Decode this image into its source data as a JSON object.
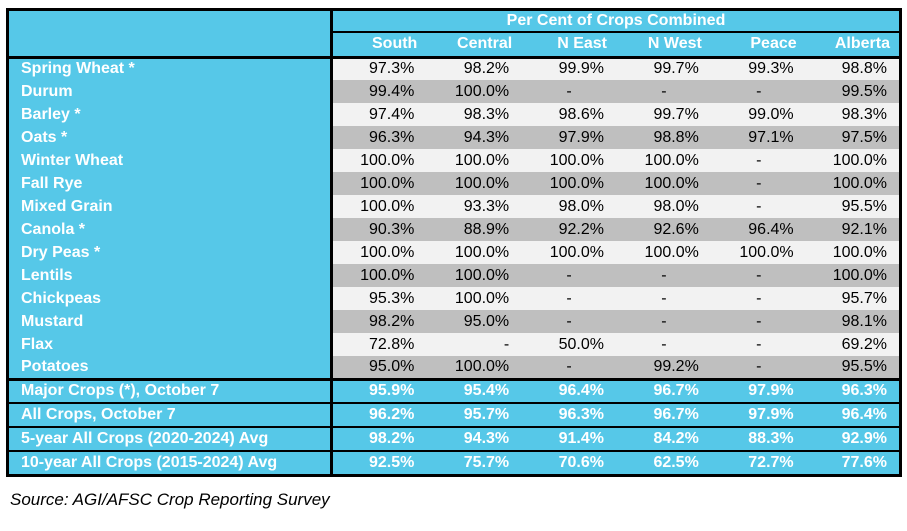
{
  "table": {
    "title": "Per Cent of Crops Combined",
    "columns": [
      "South",
      "Central",
      "N East",
      "N West",
      "Peace",
      "Alberta"
    ],
    "rows": [
      {
        "label": "Spring Wheat *",
        "values": [
          "97.3%",
          "98.2%",
          "99.9%",
          "99.7%",
          "99.3%",
          "98.8%"
        ]
      },
      {
        "label": "Durum",
        "values": [
          "99.4%",
          "100.0%",
          "-",
          "-",
          "-",
          "99.5%"
        ]
      },
      {
        "label": "Barley *",
        "values": [
          "97.4%",
          "98.3%",
          "98.6%",
          "99.7%",
          "99.0%",
          "98.3%"
        ]
      },
      {
        "label": "Oats *",
        "values": [
          "96.3%",
          "94.3%",
          "97.9%",
          "98.8%",
          "97.1%",
          "97.5%"
        ]
      },
      {
        "label": "Winter Wheat",
        "values": [
          "100.0%",
          "100.0%",
          "100.0%",
          "100.0%",
          "-",
          "100.0%"
        ]
      },
      {
        "label": "Fall Rye",
        "values": [
          "100.0%",
          "100.0%",
          "100.0%",
          "100.0%",
          "-",
          "100.0%"
        ]
      },
      {
        "label": "Mixed Grain",
        "values": [
          "100.0%",
          "93.3%",
          "98.0%",
          "98.0%",
          "-",
          "95.5%"
        ]
      },
      {
        "label": "Canola *",
        "values": [
          "90.3%",
          "88.9%",
          "92.2%",
          "92.6%",
          "96.4%",
          "92.1%"
        ]
      },
      {
        "label": "Dry Peas *",
        "values": [
          "100.0%",
          "100.0%",
          "100.0%",
          "100.0%",
          "100.0%",
          "100.0%"
        ]
      },
      {
        "label": "Lentils",
        "values": [
          "100.0%",
          "100.0%",
          "-",
          "-",
          "-",
          "100.0%"
        ]
      },
      {
        "label": "Chickpeas",
        "values": [
          "95.3%",
          "100.0%",
          "-",
          "-",
          "-",
          "95.7%"
        ]
      },
      {
        "label": "Mustard",
        "values": [
          "98.2%",
          "95.0%",
          "-",
          "-",
          "-",
          "98.1%"
        ]
      },
      {
        "label": "Flax",
        "values": [
          "72.8%",
          {
            "text": "-",
            "align": "right"
          },
          "50.0%",
          "-",
          "-",
          "69.2%"
        ]
      },
      {
        "label": "Potatoes",
        "values": [
          "95.0%",
          "100.0%",
          "-",
          "99.2%",
          "-",
          "95.5%"
        ]
      }
    ],
    "summary_rows": [
      {
        "label": "Major Crops (*), October 7",
        "values": [
          "95.9%",
          "95.4%",
          "96.4%",
          "96.7%",
          "97.9%",
          "96.3%"
        ]
      },
      {
        "label": "All Crops, October 7",
        "values": [
          "96.2%",
          "95.7%",
          "96.3%",
          "96.7%",
          "97.9%",
          "96.4%"
        ]
      },
      {
        "label": "5-year All Crops (2020-2024) Avg",
        "values": [
          "98.2%",
          "94.3%",
          "91.4%",
          "84.2%",
          "88.3%",
          "92.9%"
        ]
      },
      {
        "label": "10-year All Crops (2015-2024) Avg",
        "values": [
          "92.5%",
          "75.7%",
          "70.6%",
          "62.5%",
          "72.7%",
          "77.6%"
        ]
      }
    ]
  },
  "source": "Source: AGI/AFSC Crop Reporting Survey",
  "colors": {
    "header_blue": "#56C8E8",
    "stripe_light": "#F2F2F2",
    "stripe_dark": "#BFBFBF",
    "border": "#000000",
    "value_text": "#000000",
    "header_text": "#FFFFFF"
  }
}
